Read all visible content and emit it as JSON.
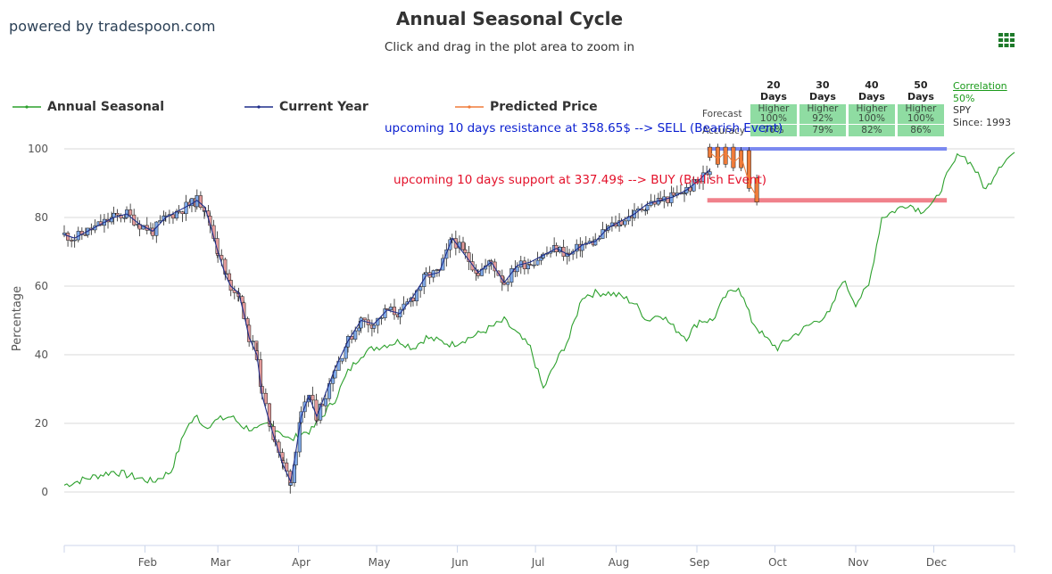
{
  "brand": "powered by tradespoon.com",
  "title": "Annual Seasonal Cycle",
  "subtitle": "Click and drag in the plot area to zoom in",
  "legend": [
    {
      "label": "Annual Seasonal",
      "color": "#2ca02c"
    },
    {
      "label": "Current Year",
      "color": "#1f2d8a"
    },
    {
      "label": "Predicted Price",
      "color": "#f07c3a"
    }
  ],
  "forecast_table": {
    "headers": [
      "20 Days",
      "30 Days",
      "40 Days",
      "50 Days"
    ],
    "rows": [
      {
        "label": "Forecast",
        "cells": [
          [
            "Higher",
            "100%"
          ],
          [
            "Higher",
            "92%"
          ],
          [
            "Higher",
            "100%"
          ],
          [
            "Higher",
            "100%"
          ]
        ]
      },
      {
        "label": "Accuracy",
        "cells": [
          [
            "76%"
          ],
          [
            "79%"
          ],
          [
            "82%"
          ],
          [
            "86%"
          ]
        ]
      }
    ]
  },
  "correlation": {
    "link": "Correlation",
    "value": "50%",
    "ticker": "SPY",
    "since": "Since: 1993"
  },
  "annotations": {
    "resistance": "upcoming 10 days resistance at 358.65$ --> SELL (Bearish Event)",
    "support": "upcoming 10 days support at 337.49$ --> BUY (Bullish Event)"
  },
  "chart_data": {
    "type": "line",
    "ylabel": "Percentage",
    "ylim": [
      -15,
      105
    ],
    "yticks": [
      0,
      20,
      40,
      60,
      80,
      100
    ],
    "months": [
      "Feb",
      "Mar",
      "Apr",
      "May",
      "Jun",
      "Jul",
      "Aug",
      "Sep",
      "Oct",
      "Nov",
      "Dec"
    ],
    "x_unit": "day of year",
    "xlim": [
      1,
      366
    ],
    "resistance_level": 100,
    "support_level": 85,
    "series": [
      {
        "name": "Annual Seasonal",
        "color": "#2ca02c",
        "x": [
          1,
          10,
          20,
          30,
          35,
          42,
          48,
          52,
          55,
          60,
          65,
          70,
          75,
          80,
          88,
          92,
          96,
          100,
          105,
          110,
          115,
          120,
          125,
          130,
          135,
          140,
          150,
          160,
          170,
          175,
          180,
          185,
          190,
          195,
          200,
          205,
          210,
          215,
          220,
          225,
          230,
          235,
          240,
          245,
          250,
          255,
          260,
          265,
          270,
          275,
          280,
          290,
          295,
          300,
          305,
          310,
          315,
          320,
          325,
          330,
          335,
          340,
          345,
          350,
          355,
          360,
          366
        ],
        "values": [
          2,
          4,
          6,
          4,
          3,
          6,
          19,
          22,
          19,
          21,
          22,
          19,
          18,
          20,
          15,
          17,
          18,
          22,
          27,
          35,
          40,
          42,
          43,
          44,
          42,
          45,
          43,
          46,
          50,
          46,
          42,
          30,
          38,
          45,
          57,
          58,
          58,
          57,
          55,
          50,
          52,
          48,
          45,
          50,
          50,
          57,
          60,
          50,
          45,
          42,
          45,
          50,
          52,
          62,
          55,
          60,
          80,
          82,
          84,
          82,
          84,
          92,
          99,
          95,
          88,
          95,
          99
        ]
      },
      {
        "name": "Current Year",
        "color": "#1f2d8a",
        "x": [
          1,
          5,
          10,
          15,
          20,
          25,
          30,
          35,
          40,
          45,
          50,
          52,
          55,
          57,
          60,
          63,
          65,
          68,
          70,
          72,
          75,
          77,
          80,
          82,
          85,
          88,
          90,
          92,
          95,
          98,
          100,
          105,
          110,
          115,
          120,
          125,
          130,
          135,
          140,
          145,
          150,
          155,
          160,
          165,
          170,
          175,
          180,
          185,
          190,
          195,
          200,
          205,
          210,
          215,
          220,
          225,
          230,
          235,
          240,
          245,
          249
        ],
        "values": [
          75,
          74,
          76,
          78,
          80,
          81,
          78,
          76,
          80,
          82,
          84,
          85,
          83,
          78,
          70,
          63,
          60,
          58,
          52,
          45,
          40,
          28,
          20,
          15,
          8,
          3,
          12,
          22,
          28,
          22,
          26,
          36,
          44,
          50,
          49,
          53,
          52,
          57,
          63,
          64,
          74,
          69,
          64,
          67,
          61,
          66,
          67,
          69,
          71,
          69,
          72,
          73,
          77,
          79,
          81,
          84,
          85,
          86,
          88,
          91,
          94
        ]
      },
      {
        "name": "Predicted Price",
        "color": "#f07c3a",
        "x": [
          249,
          252,
          255,
          258,
          261,
          264,
          267
        ],
        "values": [
          99,
          97,
          99,
          96,
          98,
          90,
          86
        ]
      }
    ]
  }
}
